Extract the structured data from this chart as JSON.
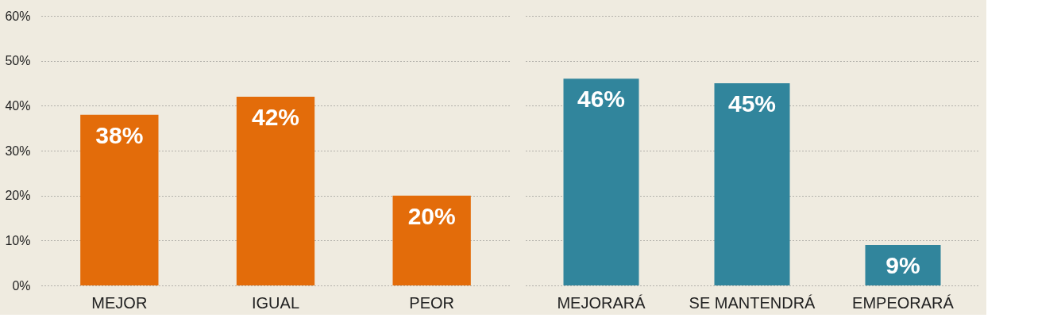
{
  "chart_data": [
    {
      "type": "bar",
      "categories": [
        "MEJOR",
        "IGUAL",
        "PEOR"
      ],
      "series": [
        {
          "color": "#e36c0a",
          "values": [
            38,
            42,
            20
          ]
        }
      ],
      "value_labels": [
        "38%",
        "42%",
        "20%"
      ],
      "ylim": [
        0,
        60
      ],
      "yticks": [
        {
          "value": 0,
          "label": "0%"
        },
        {
          "value": 10,
          "label": "10%"
        },
        {
          "value": 20,
          "label": "20%"
        },
        {
          "value": 30,
          "label": "30%"
        },
        {
          "value": 40,
          "label": "40%"
        },
        {
          "value": 50,
          "label": "50%"
        },
        {
          "value": 60,
          "label": "60%"
        }
      ],
      "grid": "y"
    },
    {
      "type": "bar",
      "categories": [
        "MEJORARÁ",
        "SE MANTENDRÁ",
        "EMPEORARÁ"
      ],
      "series": [
        {
          "color": "#31859c",
          "values": [
            46,
            45,
            9
          ]
        }
      ],
      "value_labels": [
        "46%",
        "45%",
        "9%"
      ],
      "ylim": [
        0,
        60
      ],
      "yticks": [
        0,
        10,
        20,
        30,
        40,
        50,
        60
      ],
      "grid": "y",
      "tick_labels": "x"
    }
  ]
}
